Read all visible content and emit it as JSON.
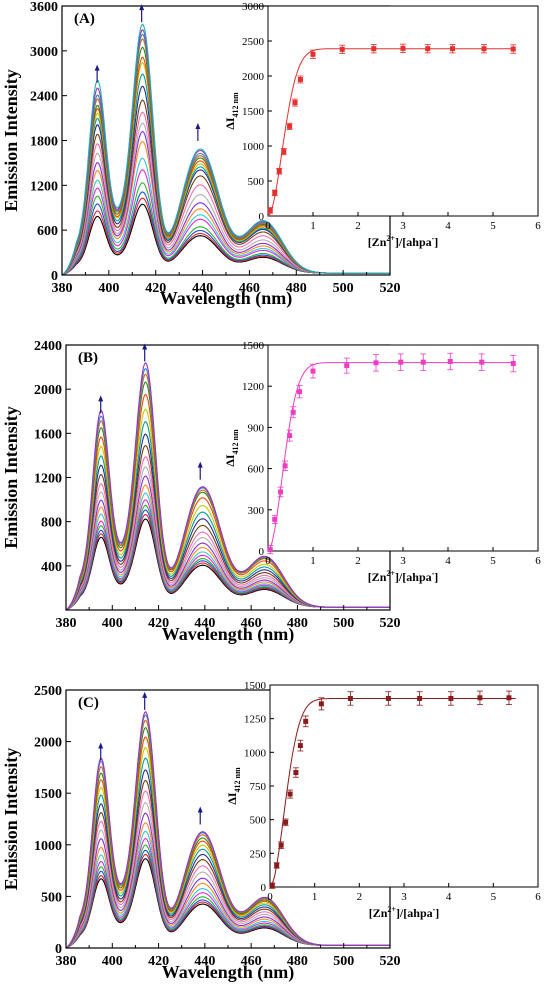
{
  "chart_data": [
    {
      "type": "line",
      "panel_label": "(A)",
      "xlabel": "Wavelength (nm)",
      "ylabel": "Emission Intensity",
      "xlim": [
        380,
        520
      ],
      "ylim": [
        0,
        3600
      ],
      "xticks": [
        380,
        400,
        420,
        440,
        460,
        480,
        500,
        520
      ],
      "yticks": [
        0,
        600,
        1200,
        1800,
        2400,
        3000,
        3600
      ],
      "peak_wavelengths": [
        395,
        414,
        438
      ],
      "spectra_peak_heights": [
        [
          720,
          900,
          500
        ],
        [
          790,
          980,
          530
        ],
        [
          880,
          1060,
          570
        ],
        [
          980,
          1180,
          620
        ],
        [
          1080,
          1350,
          720
        ],
        [
          1180,
          1500,
          780
        ],
        [
          1300,
          1720,
          860
        ],
        [
          1400,
          1850,
          940
        ],
        [
          1520,
          1960,
          1050
        ],
        [
          1640,
          2100,
          1180
        ],
        [
          1760,
          2260,
          1300
        ],
        [
          1880,
          2440,
          1380
        ],
        [
          1960,
          2600,
          1420
        ],
        [
          2020,
          2750,
          1460
        ],
        [
          2080,
          2820,
          1500
        ],
        [
          2120,
          2950,
          1540
        ],
        [
          2200,
          3060,
          1570
        ],
        [
          2250,
          3120,
          1600
        ],
        [
          2340,
          3180,
          1640
        ],
        [
          2440,
          3250,
          1660
        ]
      ],
      "inset": {
        "type": "scatter",
        "xlabel": "[Zn2+]/[ahpa-]",
        "ylabel": "ΔI412 nm",
        "xlim": [
          0,
          6
        ],
        "ylim": [
          0,
          3000
        ],
        "xticks": [
          0,
          1,
          2,
          3,
          4,
          5,
          6
        ],
        "yticks": [
          0,
          500,
          1000,
          1500,
          2000,
          2500,
          3000
        ],
        "x": [
          0.05,
          0.15,
          0.25,
          0.35,
          0.48,
          0.6,
          0.72,
          1.0,
          1.65,
          2.35,
          3.0,
          3.55,
          4.1,
          4.8,
          5.45
        ],
        "y": [
          80,
          330,
          640,
          920,
          1280,
          1620,
          1950,
          2310,
          2380,
          2390,
          2395,
          2390,
          2390,
          2390,
          2385
        ],
        "errors": [
          40,
          40,
          40,
          45,
          45,
          50,
          50,
          60,
          60,
          60,
          60,
          60,
          60,
          60,
          60
        ],
        "plateau": 2390
      },
      "colors": {
        "inset_points": "#e53030",
        "inset_fit": "#e53030",
        "arrow": "#1a1a80"
      }
    },
    {
      "type": "line",
      "panel_label": "(B)",
      "xlabel": "Wavelength (nm)",
      "ylabel": "Emission Intensity",
      "xlim": [
        380,
        520
      ],
      "ylim": [
        0,
        2400
      ],
      "xticks": [
        380,
        400,
        420,
        440,
        460,
        480,
        500,
        520
      ],
      "yticks": [
        400,
        800,
        1200,
        1600,
        2000,
        2400
      ],
      "peak_wavelengths": [
        395,
        414,
        438
      ],
      "spectra_peak_heights": [
        [
          600,
          780,
          380
        ],
        [
          630,
          820,
          400
        ],
        [
          660,
          860,
          420
        ],
        [
          700,
          900,
          440
        ],
        [
          740,
          950,
          470
        ],
        [
          800,
          1010,
          500
        ],
        [
          860,
          1080,
          540
        ],
        [
          920,
          1160,
          580
        ],
        [
          990,
          1240,
          630
        ],
        [
          1060,
          1330,
          680
        ],
        [
          1140,
          1430,
          740
        ],
        [
          1220,
          1530,
          800
        ],
        [
          1300,
          1640,
          860
        ],
        [
          1380,
          1750,
          920
        ],
        [
          1460,
          1880,
          990
        ],
        [
          1540,
          1990,
          1040
        ],
        [
          1600,
          2060,
          1060
        ],
        [
          1640,
          2110,
          1080
        ],
        [
          1690,
          2160,
          1090
        ]
      ],
      "inset": {
        "type": "scatter",
        "xlabel": "[Zn2+]/[ahpa-]",
        "ylabel": "ΔI412 nm",
        "xlim": [
          0,
          6
        ],
        "ylim": [
          0,
          1500
        ],
        "xticks": [
          0,
          1,
          2,
          3,
          4,
          5,
          6
        ],
        "yticks": [
          0,
          300,
          600,
          900,
          1200,
          1500
        ],
        "x": [
          0.05,
          0.15,
          0.28,
          0.38,
          0.48,
          0.56,
          0.7,
          1.0,
          1.75,
          2.4,
          2.95,
          3.45,
          4.05,
          4.75,
          5.45
        ],
        "y": [
          10,
          230,
          430,
          620,
          840,
          1010,
          1160,
          1310,
          1350,
          1370,
          1375,
          1375,
          1380,
          1375,
          1365
        ],
        "errors": [
          30,
          30,
          35,
          35,
          40,
          40,
          45,
          50,
          55,
          60,
          60,
          60,
          60,
          60,
          60
        ],
        "plateau": 1372
      },
      "colors": {
        "inset_points": "#f03cc0",
        "inset_fit": "#f03cc0",
        "arrow": "#1a1a80"
      }
    },
    {
      "type": "line",
      "panel_label": "(C)",
      "xlabel": "Wavelength (nm)",
      "ylabel": "Emission Intensity",
      "xlim": [
        380,
        520
      ],
      "ylim": [
        0,
        2500
      ],
      "xticks": [
        380,
        400,
        420,
        440,
        460,
        480,
        500,
        520
      ],
      "yticks": [
        0,
        500,
        1000,
        1500,
        2000,
        2500
      ],
      "peak_wavelengths": [
        395,
        414,
        438
      ],
      "spectra_peak_heights": [
        [
          610,
          820,
          400
        ],
        [
          640,
          860,
          420
        ],
        [
          680,
          900,
          440
        ],
        [
          720,
          950,
          470
        ],
        [
          770,
          1010,
          510
        ],
        [
          830,
          1080,
          550
        ],
        [
          900,
          1160,
          600
        ],
        [
          980,
          1250,
          650
        ],
        [
          1060,
          1350,
          710
        ],
        [
          1140,
          1460,
          770
        ],
        [
          1220,
          1560,
          830
        ],
        [
          1300,
          1660,
          880
        ],
        [
          1380,
          1770,
          930
        ],
        [
          1450,
          1870,
          970
        ],
        [
          1520,
          1970,
          1010
        ],
        [
          1580,
          2060,
          1040
        ],
        [
          1640,
          2130,
          1070
        ],
        [
          1690,
          2180,
          1090
        ],
        [
          1720,
          2210,
          1100
        ]
      ],
      "inset": {
        "type": "scatter",
        "xlabel": "[Zn2+]/[ahpa-]",
        "ylabel": "ΔI412 nm",
        "xlim": [
          0,
          6
        ],
        "ylim": [
          0,
          1500
        ],
        "xticks": [
          0,
          1,
          2,
          3,
          4,
          5,
          6
        ],
        "yticks": [
          0,
          250,
          500,
          750,
          1000,
          1250,
          1500
        ],
        "x": [
          0.05,
          0.15,
          0.25,
          0.35,
          0.45,
          0.58,
          0.68,
          0.8,
          1.15,
          1.8,
          2.65,
          3.35,
          4.05,
          4.7,
          5.35
        ],
        "y": [
          10,
          160,
          310,
          480,
          690,
          850,
          1050,
          1230,
          1360,
          1400,
          1400,
          1400,
          1400,
          1405,
          1405
        ],
        "errors": [
          20,
          20,
          25,
          25,
          30,
          35,
          40,
          40,
          45,
          50,
          50,
          50,
          50,
          50,
          50
        ],
        "plateau": 1400
      },
      "colors": {
        "inset_points": "#8b1a1a",
        "inset_fit": "#8b1a1a",
        "arrow": "#1a1a80"
      }
    }
  ],
  "spectrum_palette": [
    "#000000",
    "#e32424",
    "#1f4fe0",
    "#2bb52b",
    "#e22ad8",
    "#2fcbe0",
    "#ff8c1a",
    "#8a2be2",
    "#b0b0b0",
    "#ff69b4",
    "#7a3d0a",
    "#2a2a9a",
    "#00a0a0",
    "#c8c800",
    "#ff4500",
    "#228b22",
    "#d2691e",
    "#4682b4",
    "#9932cc",
    "#20b2aa"
  ]
}
